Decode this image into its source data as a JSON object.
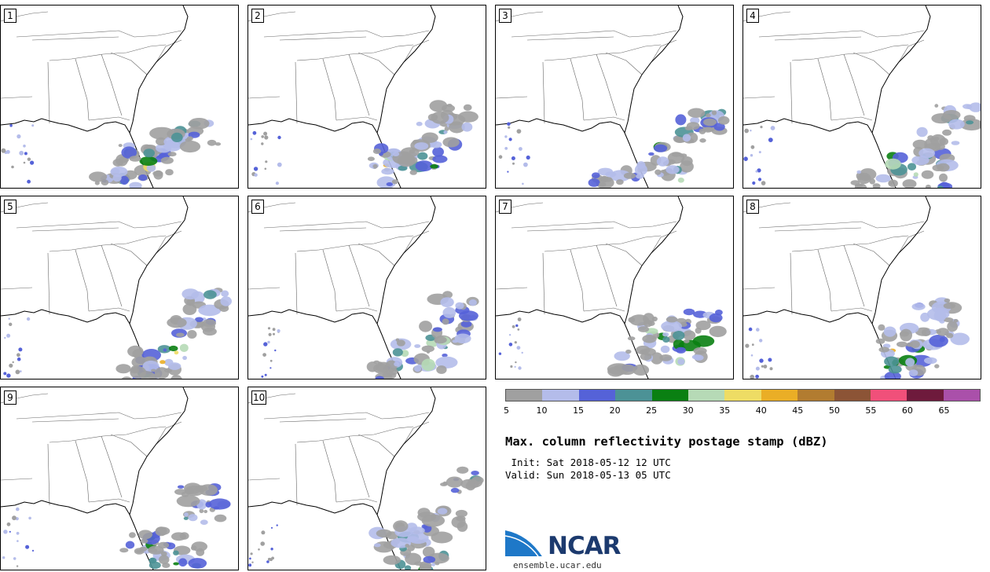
{
  "figure": {
    "title": "Max. column reflectivity postage stamp (dBZ)",
    "init": " Init: Sat 2018-05-12 12 UTC",
    "valid": "Valid: Sun 2018-05-13 05 UTC"
  },
  "panels": [
    "1",
    "2",
    "3",
    "4",
    "5",
    "6",
    "7",
    "8",
    "9",
    "10"
  ],
  "colorbar": {
    "ticks": [
      "5",
      "10",
      "15",
      "20",
      "25",
      "30",
      "35",
      "40",
      "45",
      "50",
      "55",
      "60",
      "65"
    ],
    "colors": [
      "#a0a0a0",
      "#b4bcea",
      "#5562d8",
      "#4c9296",
      "#0a8012",
      "#b6dab6",
      "#eedc64",
      "#eaae26",
      "#b27c30",
      "#8c5436",
      "#f0507a",
      "#6e1a3c",
      "#aa50aa"
    ]
  },
  "logo": {
    "name": "NCAR",
    "url": "ensemble.ucar.edu"
  }
}
